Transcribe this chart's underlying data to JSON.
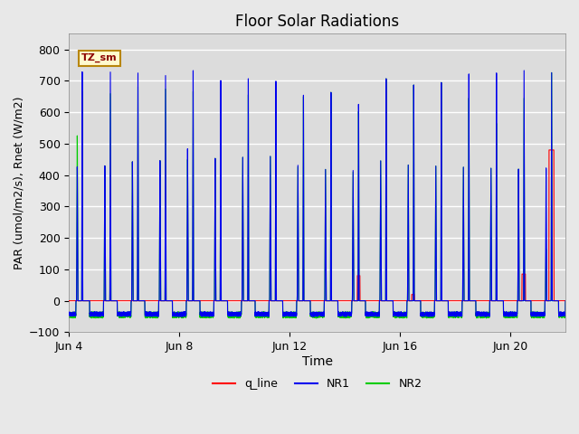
{
  "title": "Floor Solar Radiations",
  "xlabel": "Time",
  "ylabel": "PAR (umol/m2/s), Rnet (W/m2)",
  "ylim": [
    -100,
    850
  ],
  "yticks": [
    -100,
    0,
    100,
    200,
    300,
    400,
    500,
    600,
    700,
    800
  ],
  "total_days": 18,
  "annotation_text": "TZ_sm",
  "annotation_bbox_facecolor": "#FFFACD",
  "annotation_bbox_edgecolor": "#B8860B",
  "colors": {
    "q_line": "#FF0000",
    "NR1": "#0000EE",
    "NR2": "#00CC00"
  },
  "background_color": "#DCDCDC",
  "grid_color": "#FFFFFF",
  "fig_facecolor": "#E8E8E8",
  "xtick_positions": [
    0,
    4,
    8,
    12,
    16
  ],
  "xtick_labels": [
    "Jun 4",
    "Jun 8",
    "Jun 12",
    "Jun 16",
    "Jun 20"
  ]
}
